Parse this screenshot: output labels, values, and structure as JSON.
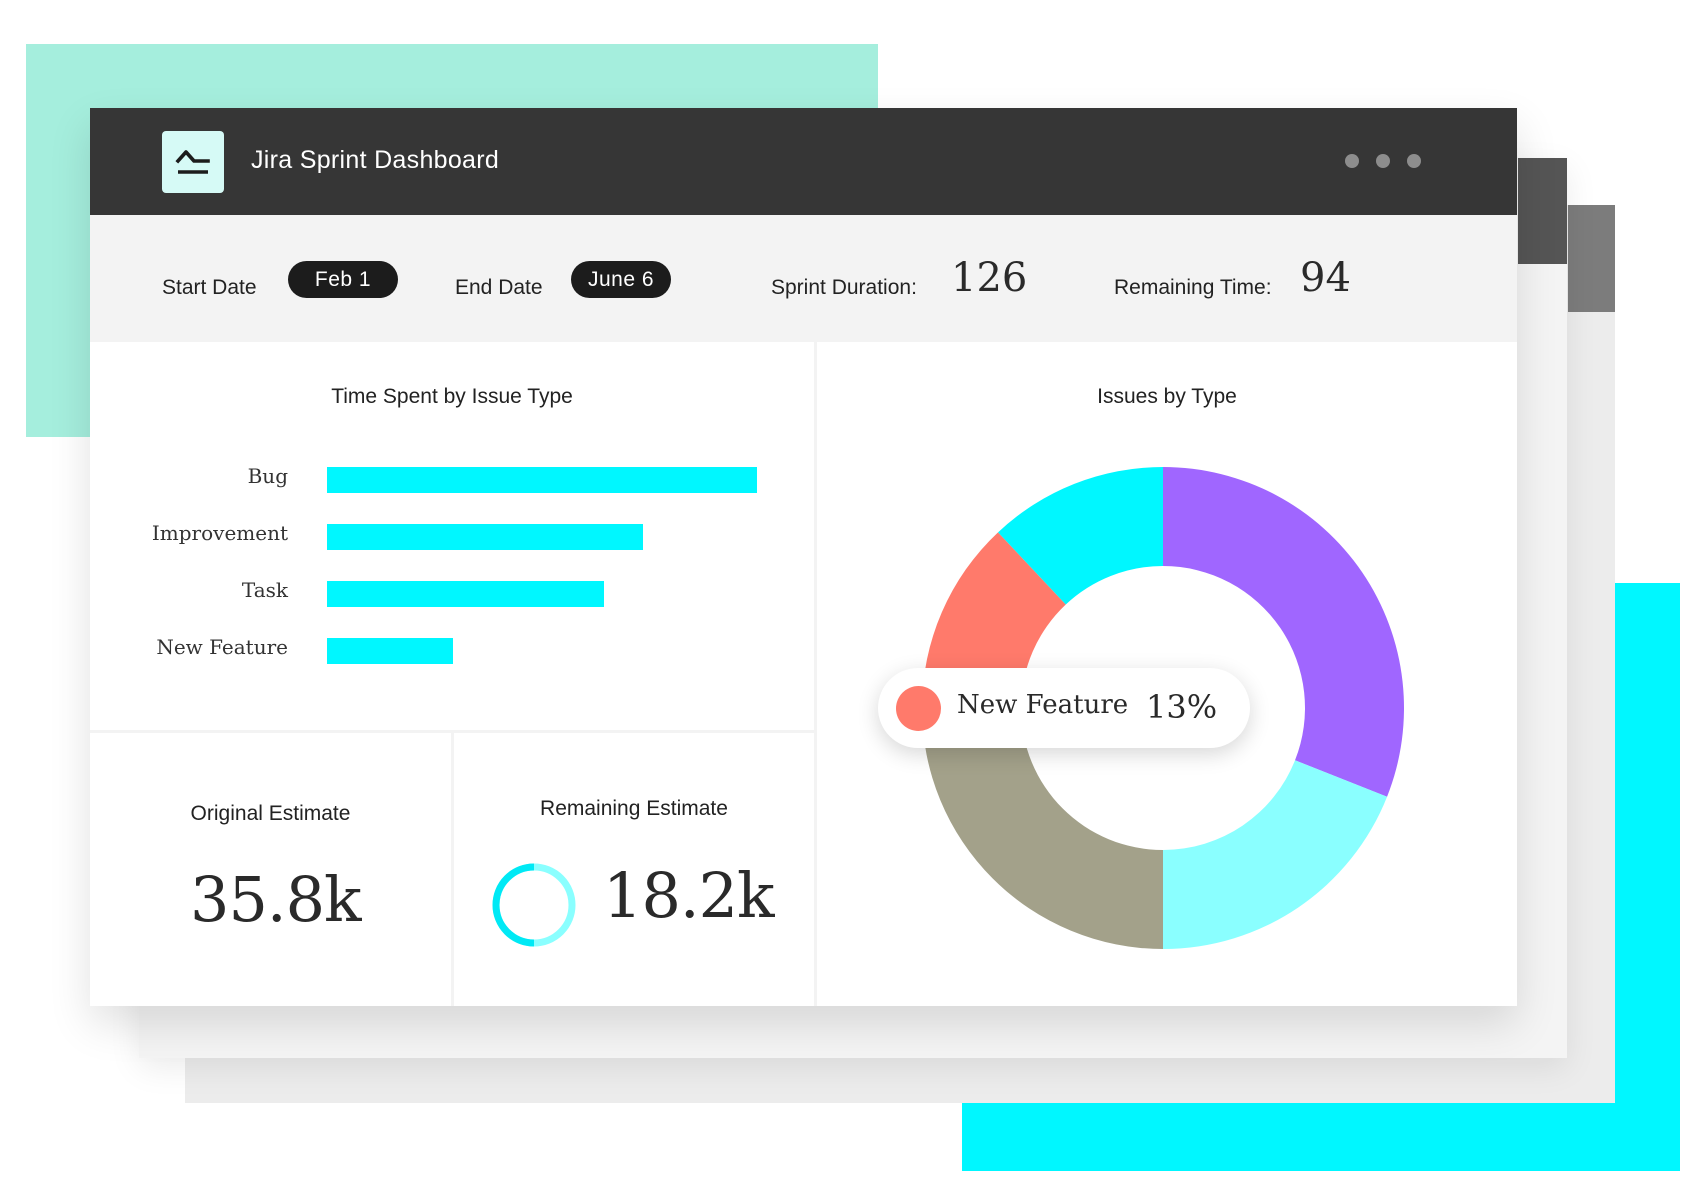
{
  "app": {
    "title": "Jira Sprint Dashboard",
    "logo_icon": "sprint-burndown-logo-icon",
    "window_controls": [
      "dot",
      "dot",
      "dot"
    ]
  },
  "filters": {
    "start_date_label": "Start Date",
    "start_date_value": "Feb  1",
    "end_date_label": "End Date",
    "end_date_value": "June  6",
    "sprint_duration_label": "Sprint Duration:",
    "sprint_duration_value": "126",
    "remaining_time_label": "Remaining Time:",
    "remaining_time_value": "94"
  },
  "time_spent": {
    "title": "Time Spent by Issue Type",
    "rows": [
      {
        "label": "Bug",
        "value": 100
      },
      {
        "label": "Improvement",
        "value": 73.5
      },
      {
        "label": "Task",
        "value": 64.5
      },
      {
        "label": "New Feature",
        "value": 29.3
      }
    ],
    "bar_color": "#00f7ff"
  },
  "original_estimate": {
    "title": "Original Estimate",
    "value": "35.8k"
  },
  "remaining_estimate": {
    "title": "Remaining Estimate",
    "value": "18.2k",
    "ring_icon": "progress-ring-icon"
  },
  "issues_by_type": {
    "title": "Issues by Type",
    "tooltip": {
      "label": "New Feature",
      "value": "13%",
      "color": "#ff7a6b"
    }
  },
  "chart_data": {
    "type": "pie",
    "title": "Issues by Type",
    "donut": true,
    "slices": [
      {
        "value": 31,
        "color": "#a066ff"
      },
      {
        "value": 19,
        "color": "#8affff"
      },
      {
        "value": 25,
        "color": "#a3a18a"
      },
      {
        "label": "New Feature",
        "value": 13,
        "color": "#ff7a6b"
      },
      {
        "value": 12,
        "color": "#00f7ff"
      }
    ]
  }
}
